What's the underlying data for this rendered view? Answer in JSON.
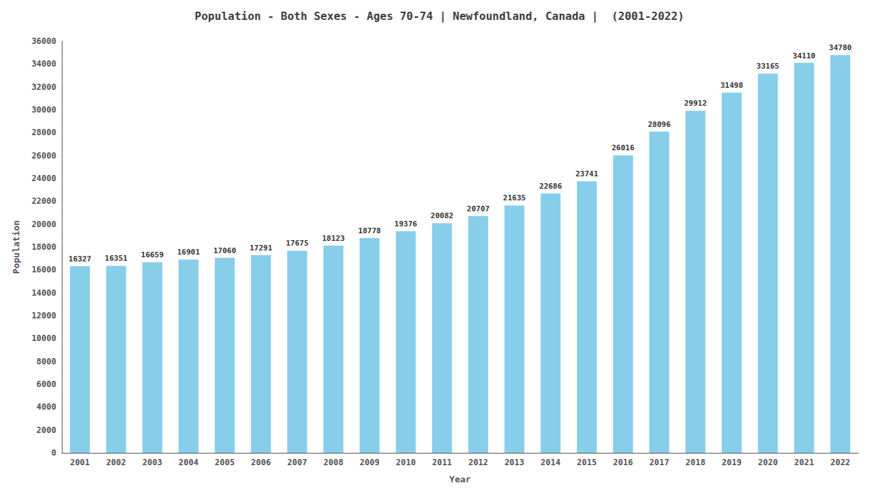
{
  "chart_data": {
    "type": "bar",
    "title": "Population - Both Sexes - Ages 70-74 | Newfoundland, Canada |  (2001-2022)",
    "x_label": "Year",
    "y_label": "Population",
    "categories": [
      "2001",
      "2002",
      "2003",
      "2004",
      "2005",
      "2006",
      "2007",
      "2008",
      "2009",
      "2010",
      "2011",
      "2012",
      "2013",
      "2014",
      "2015",
      "2016",
      "2017",
      "2018",
      "2019",
      "2020",
      "2021",
      "2022"
    ],
    "values": [
      16327,
      16351,
      16659,
      16901,
      17060,
      17291,
      17675,
      18123,
      18778,
      19376,
      20082,
      20707,
      21635,
      22686,
      23741,
      26016,
      28096,
      29912,
      31498,
      33165,
      34110,
      34780
    ],
    "color": "#87CEEB",
    "ylim": [
      0,
      36000
    ],
    "yticks": [
      0,
      2000,
      4000,
      6000,
      8000,
      10000,
      12000,
      14000,
      16000,
      18000,
      20000,
      22000,
      24000,
      26000,
      28000,
      30000,
      32000,
      34000,
      36000
    ],
    "data_labels": true,
    "grid": false
  }
}
